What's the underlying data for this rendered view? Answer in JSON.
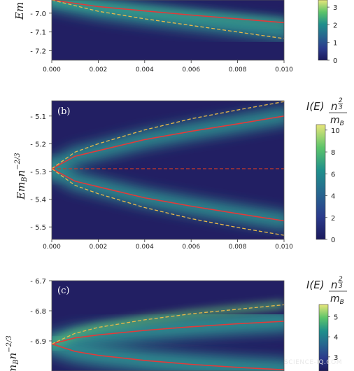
{
  "watermark": "SCIENCE-IQ.COM",
  "chart_data": [
    {
      "type": "heatmap",
      "panel_label": "",
      "x_ticks": [
        "0.000",
        "0.002",
        "0.004",
        "0.006",
        "0.008",
        "0.010"
      ],
      "xlim": [
        0,
        0.01
      ],
      "y_ticks": [
        "- 7.0",
        "- 7.1",
        "- 7.2"
      ],
      "y_tick_values": [
        -7.0,
        -7.1,
        -7.2
      ],
      "ylim": [
        -7.25,
        -6.93
      ],
      "ylabel": "Em",
      "colorbar": {
        "title": "",
        "ticks": [
          "0",
          "1",
          "2",
          "3"
        ],
        "tick_values": [
          0,
          1,
          2,
          3
        ],
        "range": [
          0,
          3.4
        ]
      },
      "curves": [
        {
          "name": "",
          "style": "solid",
          "color": "#e23a3a",
          "x": [
            0,
            0.002,
            0.004,
            0.006,
            0.008,
            0.01
          ],
          "y": [
            -6.93,
            -6.965,
            -6.988,
            -7.01,
            -7.03,
            -7.05
          ]
        },
        {
          "name": "",
          "style": "dashed",
          "color": "#e8b84a",
          "x": [
            0,
            0.002,
            0.004,
            0.006,
            0.008,
            0.01
          ],
          "y": [
            -6.93,
            -6.99,
            -7.03,
            -7.065,
            -7.1,
            -7.135
          ]
        }
      ]
    },
    {
      "type": "heatmap",
      "panel_label": "(b)",
      "x_ticks": [
        "0.000",
        "0.002",
        "0.004",
        "0.006",
        "0.008",
        "0.010"
      ],
      "xlim": [
        0,
        0.01
      ],
      "y_ticks": [
        "- 5.1",
        "- 5.2",
        "- 5.3",
        "- 5.4",
        "- 5.5"
      ],
      "y_tick_values": [
        -5.1,
        -5.2,
        -5.3,
        -5.4,
        -5.5
      ],
      "ylim": [
        -5.545,
        -5.045
      ],
      "ylabel": "E m_B n^{-2/3}",
      "colorbar": {
        "title": "I(E) n^{2/3} / m_B",
        "ticks": [
          "0",
          "2",
          "4",
          "6",
          "8",
          "10"
        ],
        "tick_values": [
          0,
          2,
          4,
          6,
          8,
          10
        ],
        "range": [
          0,
          10.5
        ]
      },
      "curves": [
        {
          "name": "",
          "style": "solid",
          "color": "#e23a3a",
          "x": [
            0,
            0.001,
            0.002,
            0.004,
            0.006,
            0.008,
            0.01
          ],
          "y": [
            -5.29,
            -5.245,
            -5.225,
            -5.185,
            -5.155,
            -5.128,
            -5.1
          ]
        },
        {
          "name": "",
          "style": "solid",
          "color": "#e23a3a",
          "x": [
            0,
            0.001,
            0.002,
            0.004,
            0.006,
            0.008,
            0.01
          ],
          "y": [
            -5.29,
            -5.335,
            -5.355,
            -5.395,
            -5.425,
            -5.452,
            -5.478
          ]
        },
        {
          "name": "",
          "style": "dashed",
          "color": "#e8b84a",
          "x": [
            0,
            0.001,
            0.002,
            0.004,
            0.006,
            0.008,
            0.01
          ],
          "y": [
            -5.29,
            -5.23,
            -5.2,
            -5.15,
            -5.11,
            -5.078,
            -5.048
          ]
        },
        {
          "name": "",
          "style": "dashed",
          "color": "#e8b84a",
          "x": [
            0,
            0.001,
            0.002,
            0.004,
            0.006,
            0.008,
            0.01
          ],
          "y": [
            -5.29,
            -5.35,
            -5.38,
            -5.43,
            -5.47,
            -5.502,
            -5.53
          ]
        },
        {
          "name": "",
          "style": "dashed",
          "color": "#c93a2a",
          "x": [
            0,
            0.01
          ],
          "y": [
            -5.29,
            -5.29
          ]
        }
      ]
    },
    {
      "type": "heatmap",
      "panel_label": "(c)",
      "x_ticks": [],
      "xlim": [
        0,
        0.01
      ],
      "y_ticks": [
        "- 6.7",
        "- 6.8",
        "- 6.9"
      ],
      "y_tick_values": [
        -6.7,
        -6.8,
        -6.9
      ],
      "ylim": [
        -7.0,
        -6.7
      ],
      "ylabel": "m_B n^{-2/3}",
      "colorbar": {
        "title": "I(E) n^{2/3} / m_B",
        "ticks": [
          "3",
          "4",
          "5"
        ],
        "tick_values": [
          3,
          4,
          5
        ],
        "range": [
          2.3,
          5.6
        ]
      },
      "curves": [
        {
          "name": "",
          "style": "solid",
          "color": "#e23a3a",
          "x": [
            0,
            0.001,
            0.002,
            0.004,
            0.006,
            0.008,
            0.01
          ],
          "y": [
            -6.91,
            -6.89,
            -6.88,
            -6.865,
            -6.853,
            -6.843,
            -6.835
          ]
        },
        {
          "name": "",
          "style": "solid",
          "color": "#e23a3a",
          "x": [
            0,
            0.001,
            0.002,
            0.004,
            0.006,
            0.008,
            0.01
          ],
          "y": [
            -6.91,
            -6.935,
            -6.948,
            -6.965,
            -6.978,
            -6.988,
            -6.996
          ]
        },
        {
          "name": "",
          "style": "dashed",
          "color": "#e8b84a",
          "x": [
            0,
            0.001,
            0.002,
            0.004,
            0.006,
            0.008,
            0.01
          ],
          "y": [
            -6.91,
            -6.875,
            -6.855,
            -6.83,
            -6.81,
            -6.795,
            -6.78
          ]
        }
      ]
    }
  ]
}
